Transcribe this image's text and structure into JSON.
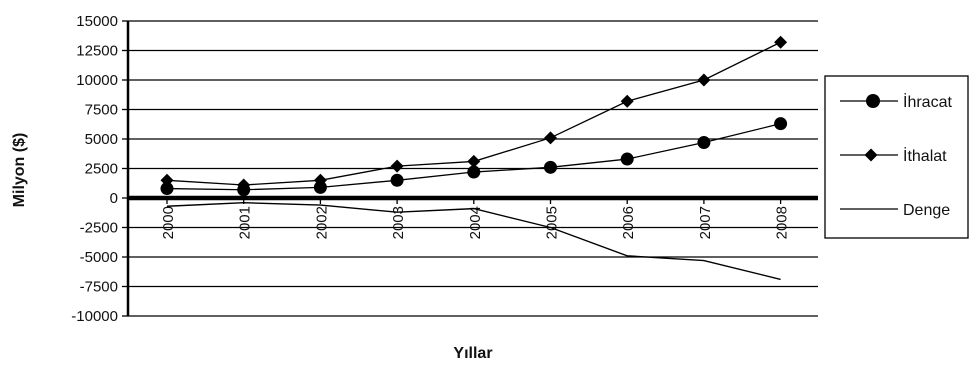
{
  "chart_data": {
    "type": "line",
    "title": "",
    "xlabel": "Yıllar",
    "ylabel": "Milyon ($)",
    "categories": [
      "2000",
      "2001",
      "2002",
      "2003",
      "2004",
      "2005",
      "2006",
      "2007",
      "2008"
    ],
    "ylim": [
      -10000,
      15000
    ],
    "yticks": [
      15000,
      12500,
      10000,
      7500,
      5000,
      2500,
      0,
      -2500,
      -5000,
      -7500,
      -10000
    ],
    "grid": true,
    "legend": "right",
    "series": [
      {
        "name": "İhracat",
        "marker": "circle",
        "color": "#000000",
        "values": [
          800,
          700,
          900,
          1500,
          2200,
          2600,
          3300,
          4700,
          6300
        ]
      },
      {
        "name": "İthalat",
        "marker": "diamond",
        "color": "#000000",
        "values": [
          1500,
          1100,
          1500,
          2700,
          3100,
          5100,
          8200,
          10000,
          13200
        ]
      },
      {
        "name": "Denge",
        "marker": "none",
        "color": "#000000",
        "values": [
          -700,
          -400,
          -600,
          -1200,
          -900,
          -2500,
          -4900,
          -5300,
          -6900
        ]
      }
    ]
  }
}
